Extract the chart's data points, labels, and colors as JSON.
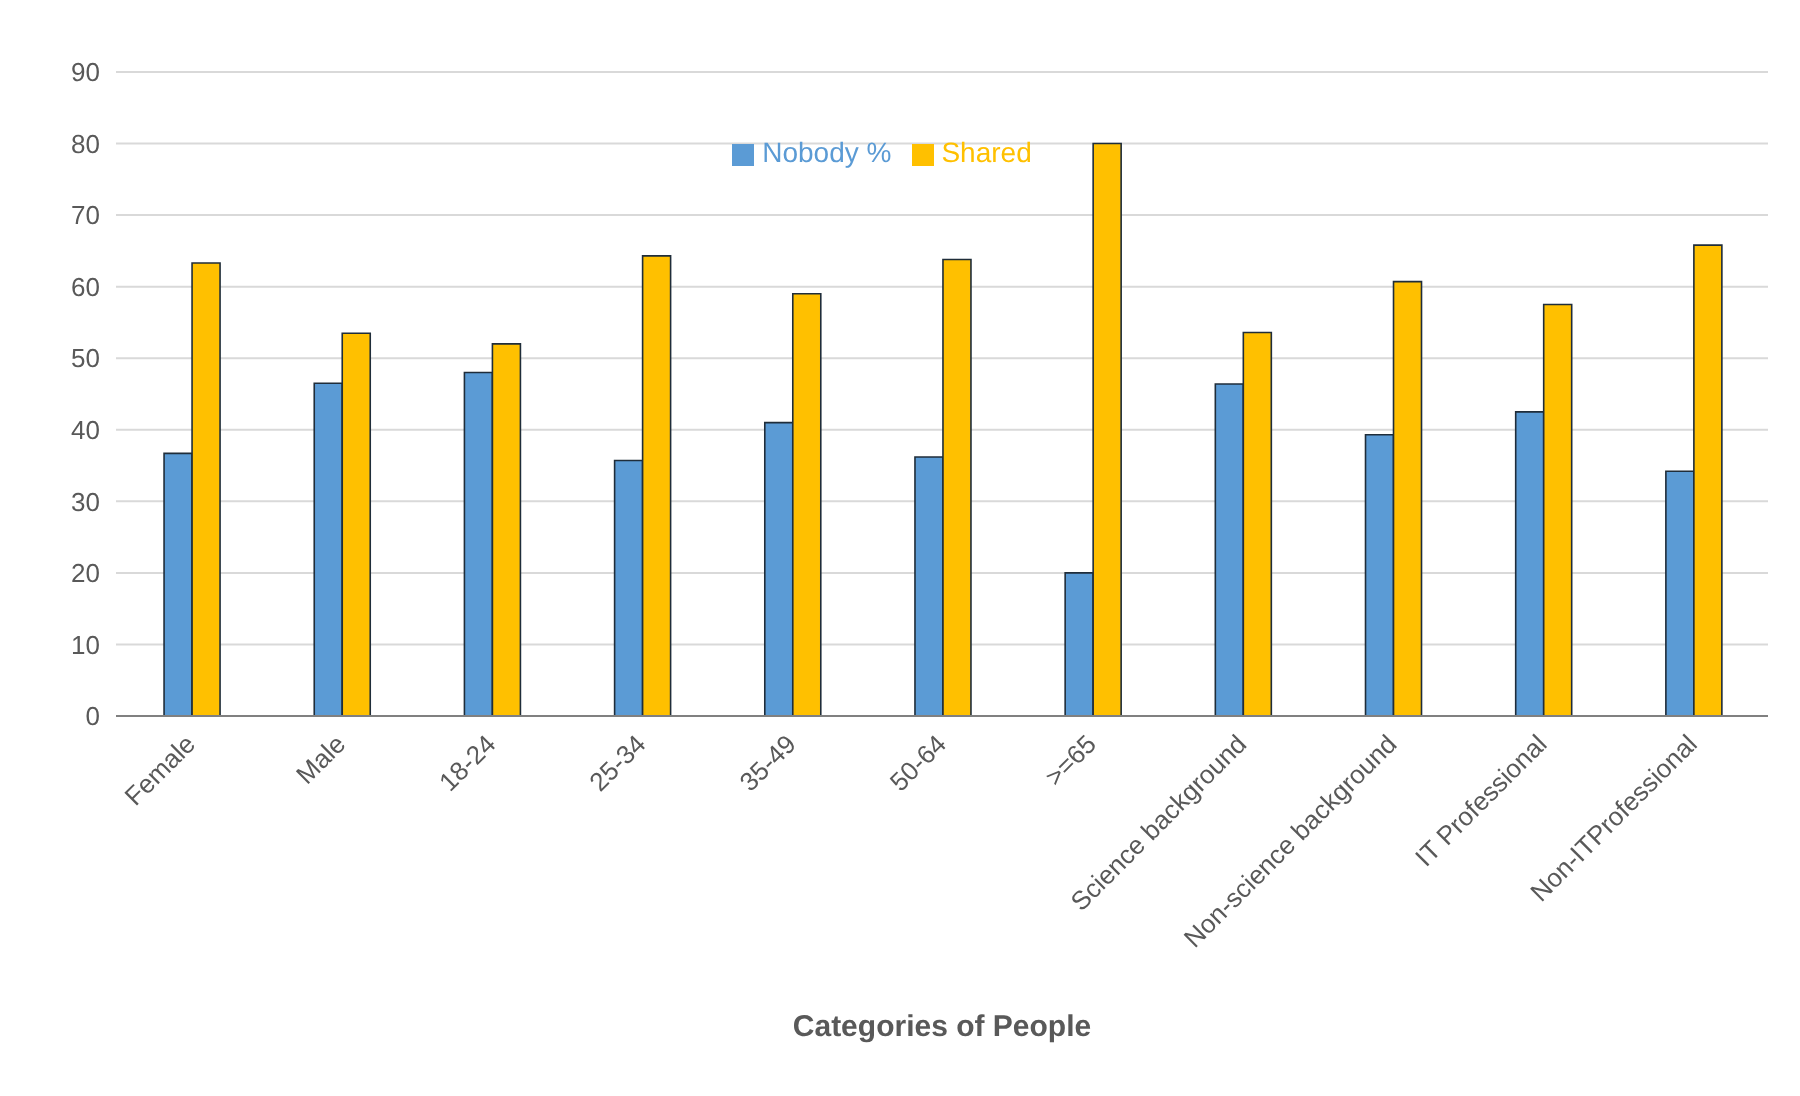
{
  "chart_data": {
    "type": "bar",
    "xlabel": "Categories of People",
    "categories": [
      "Female",
      "Male",
      "18-24",
      "25-34",
      "35-49",
      "50-64",
      ">=65",
      "Science background",
      "Non-science background",
      "IT Professional",
      "Non-ITProfessional"
    ],
    "series": [
      {
        "name": "Nobody %",
        "color": "#5b9bd5",
        "values": [
          36.7,
          46.5,
          48,
          35.7,
          41,
          36.2,
          20,
          46.4,
          39.3,
          42.5,
          34.2
        ]
      },
      {
        "name": "Shared",
        "color": "#ffc000",
        "values": [
          63.3,
          53.5,
          52,
          64.3,
          59,
          63.8,
          80,
          53.6,
          60.7,
          57.5,
          65.8
        ]
      }
    ],
    "ylim": [
      0,
      90
    ],
    "yticks": [
      0,
      10,
      20,
      30,
      40,
      50,
      60,
      70,
      80,
      90
    ],
    "grid": "y",
    "legend": "top"
  }
}
